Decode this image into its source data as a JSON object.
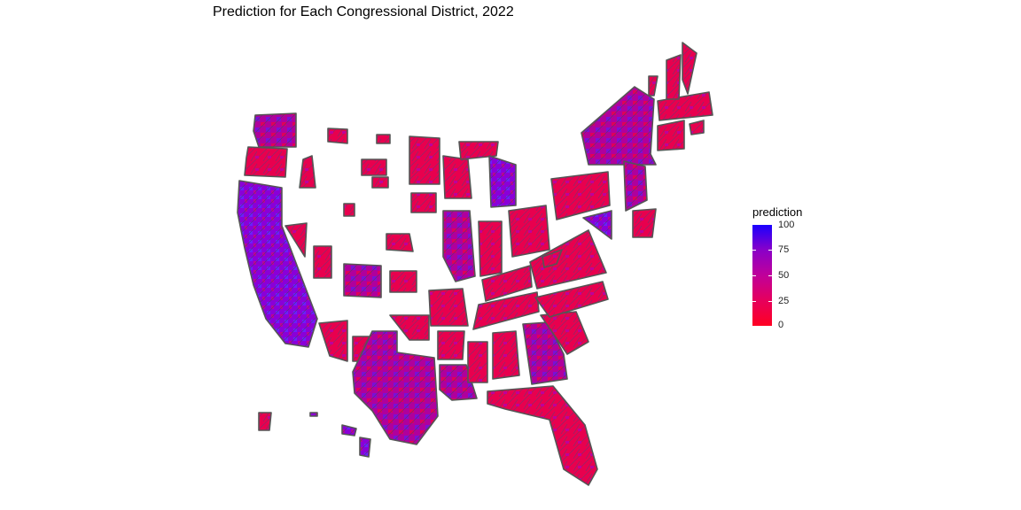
{
  "title": "Prediction for Each Congressional District, 2022",
  "legend": {
    "title": "prediction",
    "ticks": [
      "100",
      "75",
      "50",
      "25",
      "0"
    ],
    "color_high": "#1a00ff",
    "color_mid": "#c0009a",
    "color_low": "#ff0022",
    "border": "#555555"
  }
}
